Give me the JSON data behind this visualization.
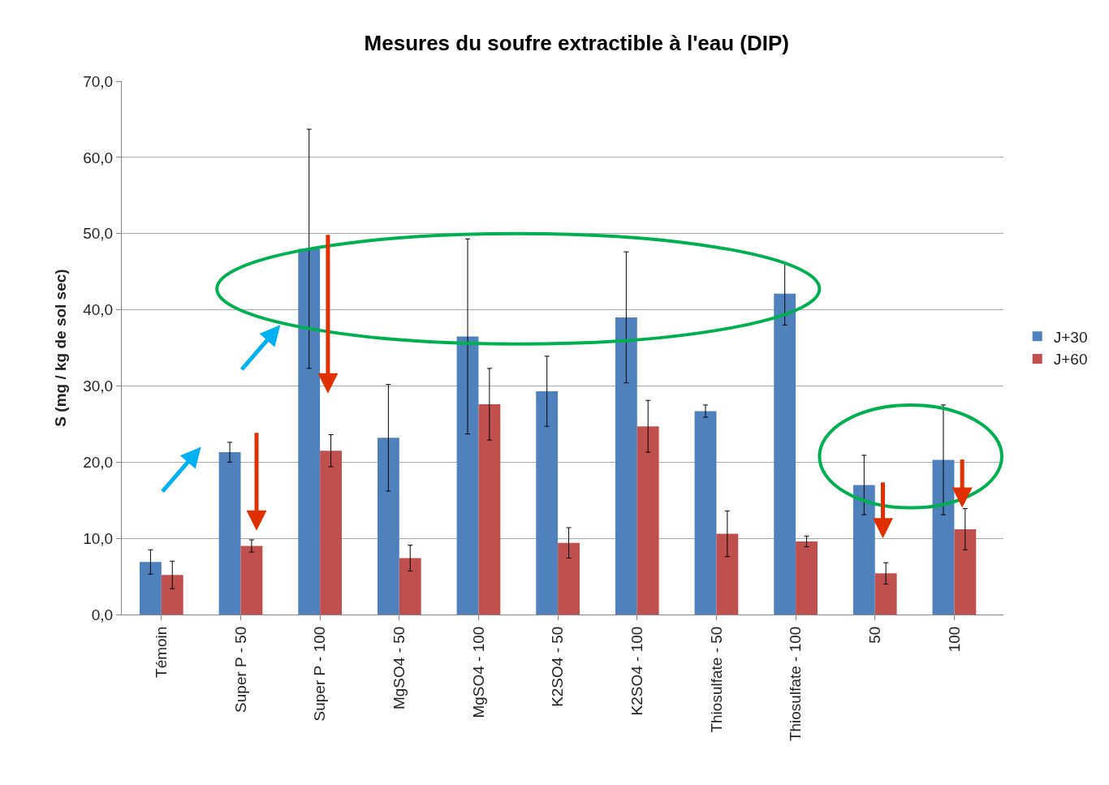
{
  "chart_data": {
    "type": "bar",
    "title": "Mesures du soufre extractible à l'eau (DIP)",
    "ylabel": "S (mg / kg de sol sec)",
    "categories": [
      "Témoin",
      "Super P - 50",
      "Super P - 100",
      "MgSO4 - 50",
      "MgSO4 - 100",
      "K2SO4 - 50",
      "K2SO4 - 100",
      "Thiosulfate - 50",
      "Thiosulfate - 100",
      "50",
      "100"
    ],
    "series": [
      {
        "name": "J+30",
        "color": "#4f81bd",
        "values": [
          6.9,
          21.3,
          48.0,
          23.2,
          36.5,
          29.3,
          39.0,
          26.7,
          42.1,
          17.0,
          20.3
        ],
        "errors": [
          1.6,
          1.3,
          15.7,
          7.0,
          12.8,
          4.6,
          8.6,
          0.8,
          4.1,
          3.9,
          7.2
        ]
      },
      {
        "name": "J+60",
        "color": "#c0504d",
        "values": [
          5.2,
          9.0,
          21.5,
          7.4,
          27.6,
          9.4,
          24.7,
          10.6,
          9.6,
          5.4,
          11.2
        ],
        "errors": [
          1.8,
          0.8,
          2.1,
          1.7,
          4.7,
          2.0,
          3.4,
          3.0,
          0.7,
          1.4,
          2.7
        ]
      }
    ],
    "ylim": [
      0,
      70
    ],
    "yticks": [
      {
        "value": 0,
        "label": "0,0"
      },
      {
        "value": 10,
        "label": "10,0"
      },
      {
        "value": 20,
        "label": "20,0"
      },
      {
        "value": 30,
        "label": "30,0"
      },
      {
        "value": 40,
        "label": "40,0"
      },
      {
        "value": 50,
        "label": "50,0"
      },
      {
        "value": 60,
        "label": "60,0"
      },
      {
        "value": 70,
        "label": "70,0"
      }
    ],
    "grid": "y",
    "legend": "right"
  }
}
